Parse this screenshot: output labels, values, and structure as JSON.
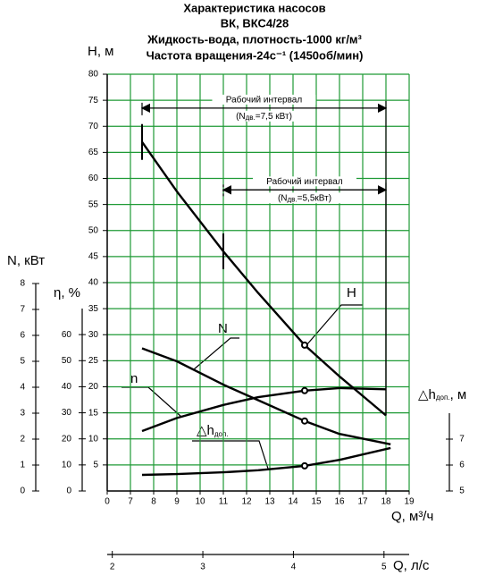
{
  "chart_data": {
    "type": "line",
    "title_lines": [
      "Характеристика насосов",
      "ВК, ВКС4/28",
      "Жидкость-вода, плотность-1000 кг/м³",
      "Частота вращения-24с⁻¹ (1450об/мин)"
    ],
    "x_label": "Q, м³/ч",
    "xlim": [
      0,
      19
    ],
    "x_axis_break": [
      0,
      6
    ],
    "xticks": [
      0,
      7,
      8,
      9,
      10,
      11,
      12,
      13,
      14,
      15,
      16,
      17,
      18,
      19
    ],
    "y_label": "H, м",
    "ylim": [
      0,
      80
    ],
    "yticks": [
      5,
      10,
      15,
      20,
      25,
      30,
      35,
      40,
      45,
      50,
      55,
      60,
      65,
      70,
      75,
      80
    ],
    "grid": true,
    "grid_color": "#1e9a35",
    "axes": {
      "n": {
        "label": "N, кВт",
        "lim": [
          0,
          8
        ],
        "ticks": [
          0,
          1,
          2,
          3,
          4,
          5,
          6,
          7,
          8
        ]
      },
      "eta": {
        "label": "η, %",
        "lim": [
          0,
          70
        ],
        "ticks": [
          0,
          10,
          20,
          30,
          40,
          50,
          60
        ]
      },
      "dh": {
        "label": "△h",
        "label_sub": "доп.",
        "label_unit": ", м",
        "lim": [
          5,
          8
        ],
        "ticks": [
          5,
          6,
          7
        ]
      }
    },
    "q_ls_axis": {
      "label": "Q, л/с",
      "xlim": [
        1.944,
        5.278
      ],
      "ticks": [
        2,
        3,
        4,
        5
      ]
    },
    "series": [
      {
        "name": "H",
        "axis": "y",
        "color": "#000000",
        "x": [
          7.5,
          9,
          11,
          12.5,
          14.5,
          16,
          18
        ],
        "values": [
          67,
          57.5,
          46,
          38,
          28,
          22,
          14.5
        ],
        "marked": {
          "x": 14.5,
          "y": 28
        }
      },
      {
        "name": "N",
        "axis": "n",
        "color": "#000000",
        "x": [
          7.5,
          9,
          11,
          12.5,
          14.5,
          16,
          18.2
        ],
        "values": [
          5.5,
          5.0,
          4.1,
          3.5,
          2.7,
          2.2,
          1.8
        ],
        "marked": {
          "x": 14.5,
          "y": 2.7
        }
      },
      {
        "name": "n",
        "axis": "eta",
        "color": "#000000",
        "x": [
          7.5,
          9,
          11,
          12.5,
          14.5,
          16,
          18
        ],
        "values": [
          23,
          28,
          33,
          36,
          38.5,
          39.5,
          39
        ],
        "marked": {
          "x": 14.5,
          "y": 38.5
        }
      },
      {
        "name": "△h",
        "name_sub": "доп.",
        "axis": "dh",
        "color": "#000000",
        "x": [
          7.5,
          9,
          11,
          12.5,
          14.5,
          16,
          18.2
        ],
        "values": [
          5.62,
          5.65,
          5.72,
          5.8,
          5.97,
          6.2,
          6.66
        ],
        "marked": {
          "x": 14.5,
          "y": 5.97
        }
      }
    ],
    "intervals": [
      {
        "label": "Рабочий интервал",
        "note_pre": "(N",
        "note_sub": "дв.",
        "note_post": "=7,5 кВт)",
        "range": [
          7.5,
          18
        ],
        "h": 73.5
      },
      {
        "label": "Рабочий интервал",
        "note_pre": "(N",
        "note_sub": "дв.",
        "note_post": "=5,5кВт)",
        "range": [
          11,
          18
        ],
        "h": 57.8
      }
    ]
  }
}
